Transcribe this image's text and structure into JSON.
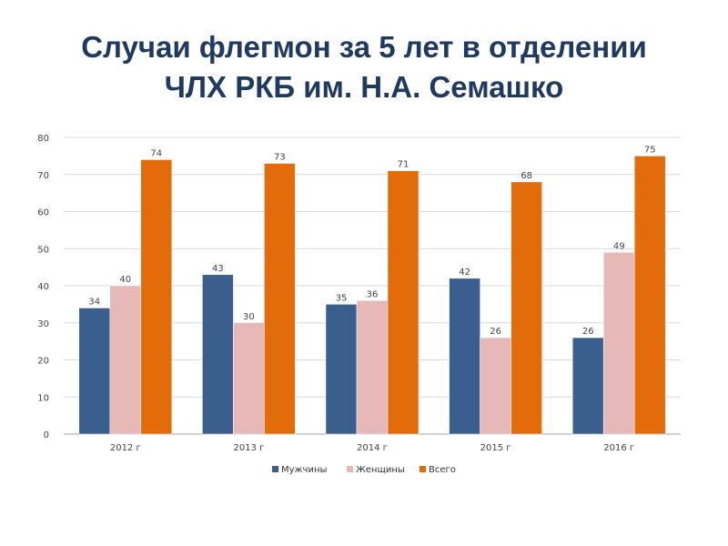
{
  "title": {
    "line1": "Случаи флегмон за 5 лет в отделении",
    "line2": "ЧЛХ РКБ им. Н.А. Семашко"
  },
  "chart_data": {
    "type": "bar",
    "categories": [
      "2012 г",
      "2013 г",
      "2014 г",
      "2015 г",
      "2016 г"
    ],
    "series": [
      {
        "name": "Мужчины",
        "values": [
          34,
          43,
          35,
          42,
          26
        ],
        "color": "#3a5f8f"
      },
      {
        "name": "Женщины",
        "values": [
          40,
          30,
          36,
          26,
          49
        ],
        "color": "#e6b8b7"
      },
      {
        "name": "Всего",
        "values": [
          74,
          73,
          71,
          68,
          75
        ],
        "color": "#e36c0a"
      }
    ],
    "ylim": [
      0,
      80
    ],
    "yticks": [
      0,
      10,
      20,
      30,
      40,
      50,
      60,
      70,
      80
    ],
    "grid": true,
    "legend_position": "bottom",
    "data_labels": true,
    "xlabel": "",
    "ylabel": ""
  }
}
